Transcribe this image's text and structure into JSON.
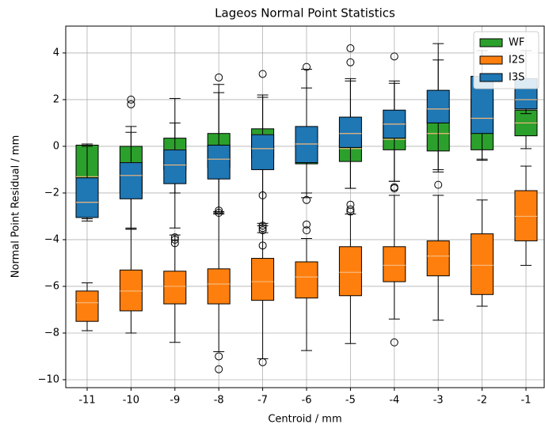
{
  "chart_data": {
    "type": "box",
    "title": "Lageos Normal Point Statistics",
    "x_label": "Centroid / mm",
    "y_label": "Normal Point Residual / mm",
    "categories": [
      "-11",
      "-10",
      "-9",
      "-8",
      "-7",
      "-6",
      "-5",
      "-4",
      "-3",
      "-2",
      "-1"
    ],
    "ylim": [
      -10.34,
      5.15
    ],
    "yticks": [
      {
        "value": -10,
        "label": "−10"
      },
      {
        "value": -8,
        "label": "−8"
      },
      {
        "value": -6,
        "label": "−6"
      },
      {
        "value": -4,
        "label": "−4"
      },
      {
        "value": -2,
        "label": "−2"
      },
      0,
      2,
      4
    ],
    "grid": true,
    "legend": "upper right",
    "median_color": "#f5b87a",
    "series": [
      {
        "name": "WF",
        "color": "#2ca02c",
        "values": [
          {
            "whislo": -3.1,
            "q1": -2.6,
            "med": -1.3,
            "q3": 0.05,
            "whishi": 0.1,
            "fliers": []
          },
          {
            "whislo": -3.5,
            "q1": -2.0,
            "med": -0.7,
            "q3": 0.0,
            "whishi": 0.6,
            "fliers": []
          },
          {
            "whislo": -2.0,
            "q1": -1.0,
            "med": -0.15,
            "q3": 0.35,
            "whishi": 1.0,
            "fliers": []
          },
          {
            "whislo": -2.8,
            "q1": -0.9,
            "med": 0.0,
            "q3": 0.55,
            "whishi": 2.3,
            "fliers": []
          },
          {
            "whislo": -3.4,
            "q1": -0.5,
            "med": 0.5,
            "q3": 0.75,
            "whishi": 2.1,
            "fliers": []
          },
          {
            "whislo": -2.2,
            "q1": -0.75,
            "med": -0.45,
            "q3": 0.6,
            "whishi": 2.5,
            "fliers": []
          },
          {
            "whislo": -1.8,
            "q1": -0.65,
            "med": -0.1,
            "q3": 0.3,
            "whishi": 2.8,
            "fliers": []
          },
          {
            "whislo": -1.5,
            "q1": -0.15,
            "med": 0.3,
            "q3": 1.0,
            "whishi": 2.7,
            "fliers": []
          },
          {
            "whislo": -1.0,
            "q1": -0.2,
            "med": 0.55,
            "q3": 1.6,
            "whishi": 3.7,
            "fliers": []
          },
          {
            "whislo": -0.6,
            "q1": -0.15,
            "med": 0.6,
            "q3": 2.0,
            "whishi": 3.0,
            "fliers": []
          },
          {
            "whislo": -0.1,
            "q1": 0.45,
            "med": 1.0,
            "q3": 1.55,
            "whishi": 2.2,
            "fliers": []
          }
        ]
      },
      {
        "name": "I2S",
        "color": "#ff7f0e",
        "values": [
          {
            "whislo": -7.9,
            "q1": -7.5,
            "med": -6.7,
            "q3": -6.2,
            "whishi": -5.85,
            "fliers": []
          },
          {
            "whislo": -8.0,
            "q1": -7.05,
            "med": -6.2,
            "q3": -5.3,
            "whishi": -3.55,
            "fliers": []
          },
          {
            "whislo": -8.4,
            "q1": -6.75,
            "med": -6.0,
            "q3": -5.35,
            "whishi": -3.8,
            "fliers": [
              -3.9,
              -4.0,
              -4.15
            ]
          },
          {
            "whislo": -8.8,
            "q1": -6.75,
            "med": -5.9,
            "q3": -5.25,
            "whishi": -2.9,
            "fliers": [
              -2.75,
              -2.85,
              -9.0,
              -9.55
            ]
          },
          {
            "whislo": -9.1,
            "q1": -6.6,
            "med": -5.8,
            "q3": -4.8,
            "whishi": -3.7,
            "fliers": [
              -3.4,
              -3.5,
              -3.6,
              -4.25,
              -9.25
            ]
          },
          {
            "whislo": -8.75,
            "q1": -6.5,
            "med": -5.6,
            "q3": -4.95,
            "whishi": -3.95,
            "fliers": [
              -3.35,
              -3.6
            ]
          },
          {
            "whislo": -8.45,
            "q1": -6.4,
            "med": -5.4,
            "q3": -4.3,
            "whishi": -2.9,
            "fliers": [
              -2.5,
              -2.7,
              -2.8
            ]
          },
          {
            "whislo": -7.4,
            "q1": -5.8,
            "med": -5.1,
            "q3": -4.3,
            "whishi": -2.1,
            "fliers": [
              -1.75,
              -1.8,
              -8.4
            ]
          },
          {
            "whislo": -7.45,
            "q1": -5.55,
            "med": -4.7,
            "q3": -4.05,
            "whishi": -2.1,
            "fliers": [
              -1.65
            ]
          },
          {
            "whislo": -6.85,
            "q1": -6.35,
            "med": -5.1,
            "q3": -3.75,
            "whishi": -2.3,
            "fliers": []
          },
          {
            "whislo": -5.1,
            "q1": -4.05,
            "med": -3.0,
            "q3": -1.9,
            "whishi": -0.85,
            "fliers": []
          }
        ]
      },
      {
        "name": "I3S",
        "color": "#1f77b4",
        "values": [
          {
            "whislo": -3.2,
            "q1": -3.05,
            "med": -2.4,
            "q3": -1.35,
            "whishi": 0.0,
            "fliers": []
          },
          {
            "whislo": -3.55,
            "q1": -2.25,
            "med": -1.25,
            "q3": -0.7,
            "whishi": 0.85,
            "fliers": [
              1.8,
              2.0
            ]
          },
          {
            "whislo": -3.5,
            "q1": -1.6,
            "med": -0.8,
            "q3": -0.15,
            "whishi": 2.05,
            "fliers": []
          },
          {
            "whislo": -2.85,
            "q1": -1.4,
            "med": -0.55,
            "q3": 0.05,
            "whishi": 2.65,
            "fliers": [
              2.95
            ]
          },
          {
            "whislo": -3.3,
            "q1": -1.0,
            "med": -0.1,
            "q3": 0.5,
            "whishi": 2.2,
            "fliers": [
              3.1,
              -2.1
            ]
          },
          {
            "whislo": -2.0,
            "q1": -0.7,
            "med": 0.1,
            "q3": 0.85,
            "whishi": 3.3,
            "fliers": [
              3.4,
              -2.3
            ]
          },
          {
            "whislo": -1.8,
            "q1": -0.05,
            "med": 0.55,
            "q3": 1.25,
            "whishi": 2.9,
            "fliers": [
              3.6,
              4.2
            ]
          },
          {
            "whislo": -1.5,
            "q1": 0.35,
            "med": 0.95,
            "q3": 1.55,
            "whishi": 2.8,
            "fliers": [
              3.85
            ]
          },
          {
            "whislo": -1.1,
            "q1": 1.0,
            "med": 1.6,
            "q3": 2.4,
            "whishi": 4.4,
            "fliers": []
          },
          {
            "whislo": -0.55,
            "q1": 0.55,
            "med": 1.2,
            "q3": 3.0,
            "whishi": 4.1,
            "fliers": []
          },
          {
            "whislo": 1.4,
            "q1": 1.6,
            "med": 2.0,
            "q3": 2.9,
            "whishi": 4.1,
            "fliers": []
          }
        ]
      }
    ]
  }
}
